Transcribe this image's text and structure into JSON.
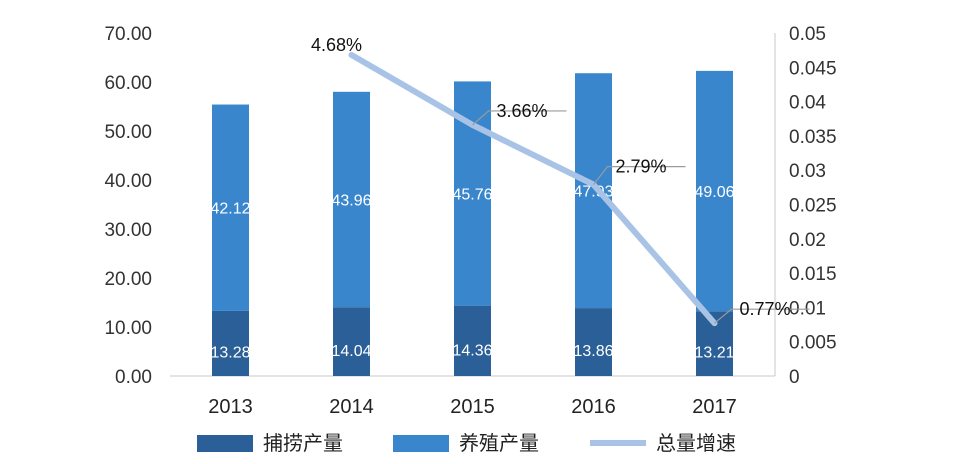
{
  "chart_data": {
    "type": "bar",
    "categories": [
      "2013",
      "2014",
      "2015",
      "2016",
      "2017"
    ],
    "series": [
      {
        "name": "捕捞产量",
        "kind": "bar",
        "stack": "total",
        "color": "#2a5f97",
        "values": [
          13.28,
          14.04,
          14.36,
          13.86,
          13.21
        ]
      },
      {
        "name": "养殖产量",
        "kind": "bar",
        "stack": "total",
        "color": "#3a86cd",
        "values": [
          42.12,
          43.96,
          45.76,
          47.93,
          49.06
        ]
      },
      {
        "name": "总量增速",
        "kind": "line",
        "axis": "right",
        "color": "#a9c3e6",
        "values": [
          null,
          0.0468,
          0.0366,
          0.0279,
          0.0077
        ]
      }
    ],
    "bar_labels": [
      [
        "13.28",
        "14.04",
        "14.36",
        "13.86",
        "13.21"
      ],
      [
        "42.12",
        "43.96",
        "45.76",
        "47.93",
        "49.06"
      ]
    ],
    "line_labels": [
      null,
      "4.68%",
      "3.66%",
      "2.79%",
      "0.77%"
    ],
    "y_left": {
      "ylim": [
        0,
        70
      ],
      "ticks": [
        "0.00",
        "10.00",
        "20.00",
        "30.00",
        "40.00",
        "50.00",
        "60.00",
        "70.00"
      ]
    },
    "y_right": {
      "ylim": [
        0,
        0.05
      ],
      "ticks": [
        "0",
        "0.005",
        "0.01",
        "0.015",
        "0.02",
        "0.025",
        "0.03",
        "0.035",
        "0.04",
        "0.045",
        "0.05"
      ]
    },
    "grid": false,
    "legend_position": "bottom"
  }
}
